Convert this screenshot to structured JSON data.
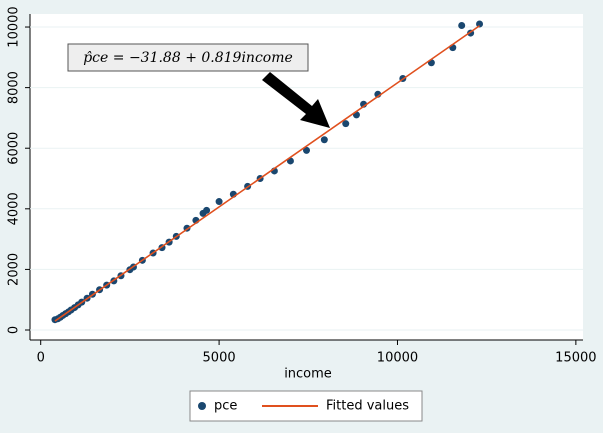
{
  "chart_data": {
    "type": "scatter",
    "xlabel": "income",
    "annotation": "p̂ce = −31.88 + 0.819income",
    "xlim": [
      -300,
      15200
    ],
    "ylim": [
      -330,
      10430
    ],
    "xticks": [
      0,
      5000,
      10000,
      15000
    ],
    "yticks": [
      0,
      2000,
      4000,
      6000,
      8000,
      10000
    ],
    "grid": true,
    "series": [
      {
        "name": "pce",
        "type": "scatter",
        "color": "#1a476f",
        "x": [
          400,
          480,
          550,
          620,
          700,
          780,
          850,
          950,
          1050,
          1150,
          1300,
          1450,
          1650,
          1850,
          2050,
          2250,
          2500,
          2600,
          2850,
          3150,
          3400,
          3600,
          3800,
          4100,
          4350,
          4550,
          4650,
          5000,
          5400,
          5800,
          6150,
          6550,
          7000,
          7450,
          7950,
          8550,
          8850,
          9050,
          9450,
          10150,
          10950,
          11550,
          11800,
          12050,
          12300
        ],
        "values": [
          340,
          370,
          420,
          480,
          540,
          600,
          660,
          740,
          830,
          920,
          1050,
          1180,
          1330,
          1480,
          1620,
          1790,
          1990,
          2080,
          2300,
          2540,
          2720,
          2900,
          3090,
          3360,
          3620,
          3850,
          3950,
          4240,
          4480,
          4740,
          5000,
          5250,
          5580,
          5930,
          6280,
          6810,
          7100,
          7450,
          7780,
          8300,
          8820,
          9320,
          10050,
          9800,
          10100
        ]
      },
      {
        "name": "Fitted values",
        "type": "line",
        "color": "#e0501e",
        "x": [
          400,
          12300
        ],
        "values": [
          295.72,
          10041.82
        ]
      }
    ]
  }
}
